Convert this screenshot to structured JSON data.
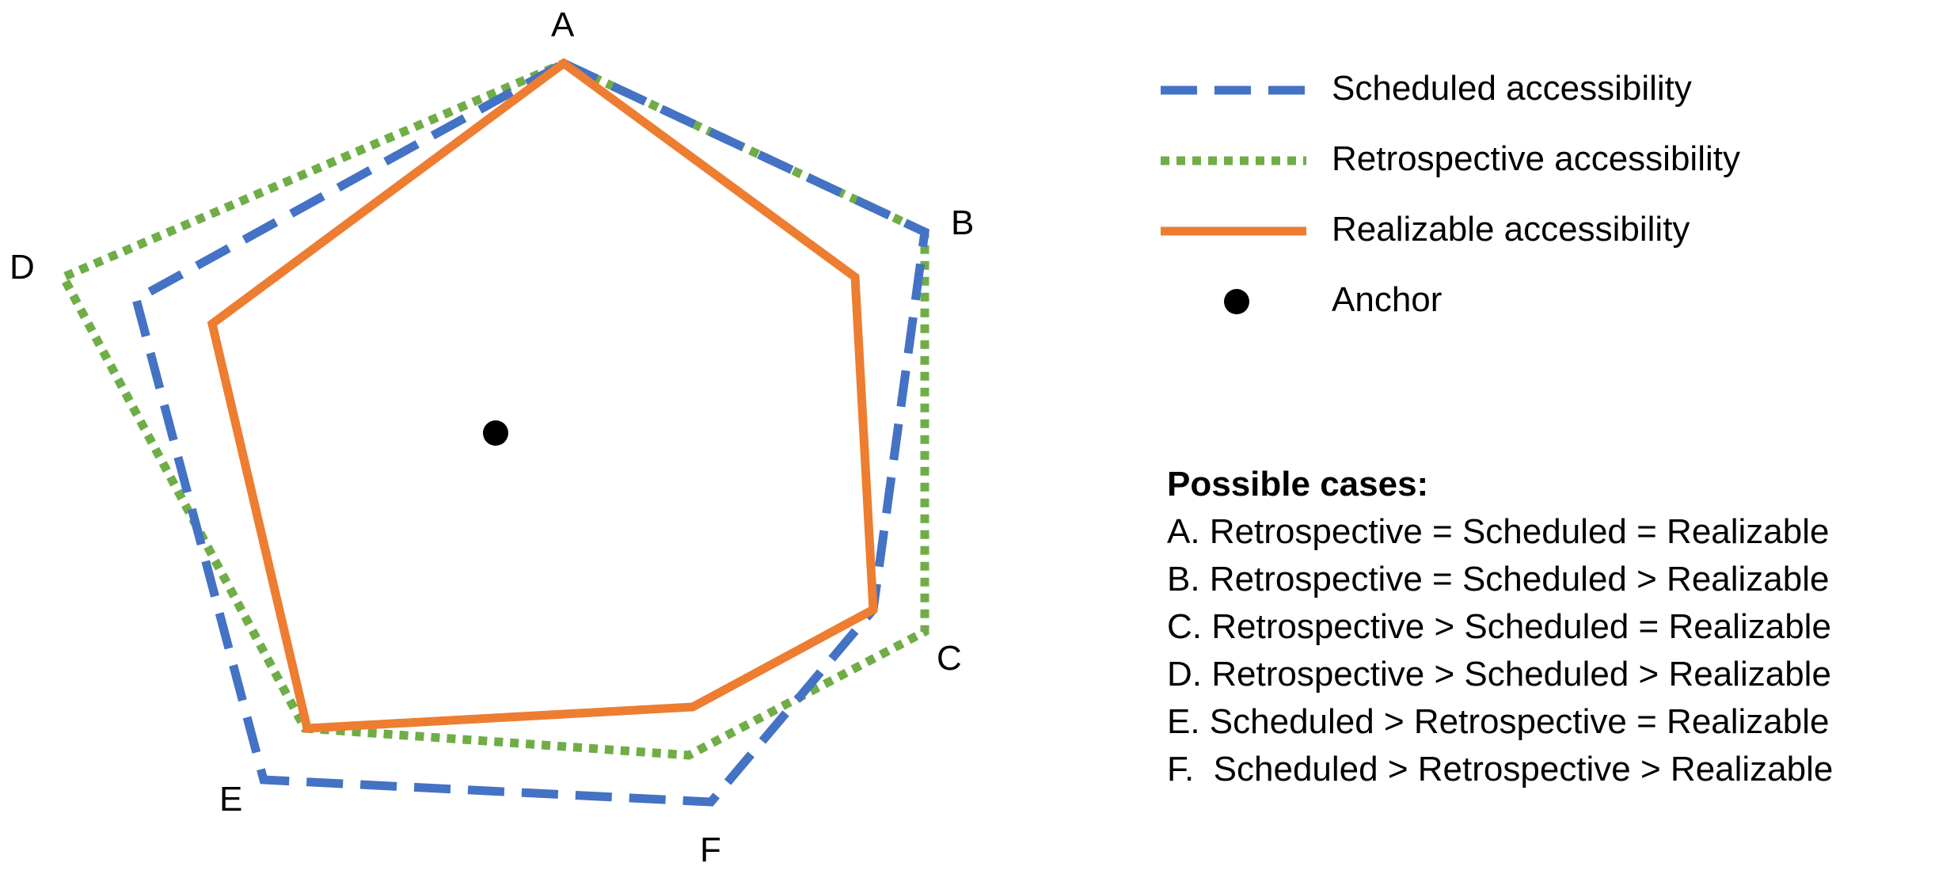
{
  "vertex_labels": {
    "A": "A",
    "B": "B",
    "C": "C",
    "D": "D",
    "E": "E",
    "F": "F"
  },
  "legend": {
    "scheduled": {
      "label": "Scheduled accessibility",
      "color": "#4472C4",
      "style": "dashed"
    },
    "retrospective": {
      "label": "Retrospective accessibility",
      "color": "#70AD47",
      "style": "dotted"
    },
    "realizable": {
      "label": "Realizable accessibility",
      "color": "#ED7D31",
      "style": "solid"
    },
    "anchor": {
      "label": "Anchor",
      "color": "#000000",
      "marker": "filled-circle"
    }
  },
  "cases": {
    "heading": "Possible cases:",
    "items": [
      "A. Retrospective = Scheduled = Realizable",
      "B. Retrospective = Scheduled > Realizable",
      "C. Retrospective > Scheduled = Realizable",
      "D. Retrospective > Scheduled > Realizable",
      "E. Scheduled > Retrospective = Realizable",
      "F.  Scheduled > Retrospective > Realizable"
    ]
  }
}
